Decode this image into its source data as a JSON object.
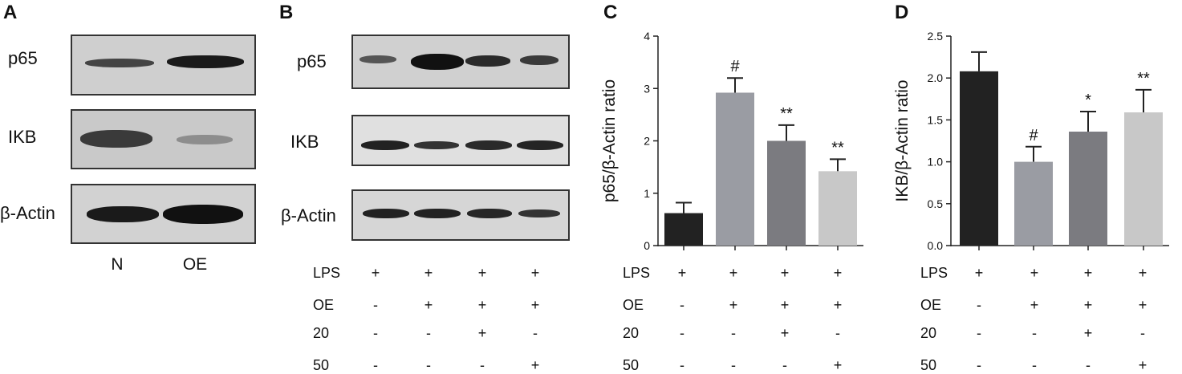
{
  "panels": {
    "A": {
      "letter": "A",
      "rows": [
        "p65",
        "IKB",
        "β-Actin"
      ],
      "lanes": [
        "N",
        "OE"
      ]
    },
    "B": {
      "letter": "B",
      "rows": [
        "p65",
        "IKB",
        "β-Actin"
      ]
    },
    "C": {
      "letter": "C"
    },
    "D": {
      "letter": "D"
    }
  },
  "conditions": {
    "labels": [
      "LPS",
      "OE",
      "20",
      "50"
    ],
    "matrix": [
      [
        "+",
        "+",
        "+",
        "+"
      ],
      [
        "-",
        "+",
        "+",
        "+"
      ],
      [
        "-",
        "-",
        "+",
        "-"
      ],
      [
        "-",
        "-",
        "-",
        "+"
      ]
    ]
  },
  "colors": {
    "bar1": "#222222",
    "bar2": "#9a9ca3",
    "bar3": "#7b7b80",
    "bar4": "#c8c8c8",
    "blot_bg": "#cfcfcf",
    "band": "#1a1a1a"
  },
  "chart_data": [
    {
      "panel": "C",
      "type": "bar",
      "ylabel": "p65/β-Actin ratio",
      "xlabel": "",
      "ylim": [
        0,
        4
      ],
      "yticks": [
        "0",
        "1",
        "2",
        "3",
        "4"
      ],
      "values": [
        0.62,
        2.92,
        2.0,
        1.42
      ],
      "errors": [
        0.2,
        0.28,
        0.3,
        0.23
      ],
      "annotations": [
        "",
        "#",
        "**",
        "**"
      ],
      "grid": false
    },
    {
      "panel": "D",
      "type": "bar",
      "ylabel": "IKB/β-Actin ratio",
      "xlabel": "",
      "ylim": [
        0,
        2.5
      ],
      "yticks": [
        "0.0",
        "0.5",
        "1.0",
        "1.5",
        "2.0",
        "2.5"
      ],
      "values": [
        2.08,
        1.0,
        1.36,
        1.59
      ],
      "errors": [
        0.23,
        0.18,
        0.24,
        0.27
      ],
      "annotations": [
        "",
        "#",
        "*",
        "**"
      ],
      "grid": false
    }
  ]
}
